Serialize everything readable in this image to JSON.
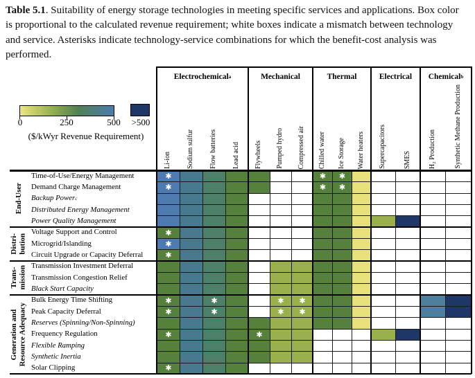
{
  "caption": {
    "bold": "Table 5.1",
    "text": ". Suitability of energy storage technologies in meeting specific services and applications. Box color is proportional to the calculated revenue requirement; white boxes indicate a mismatch between technology and service. Asterisks indicate technology-service combinations for which the benefit-cost analysis was performed."
  },
  "legend": {
    "ticks": [
      "0",
      "250",
      "500"
    ],
    "overflow_label": ">500",
    "caption": "($/kWyr Revenue Requirement)",
    "gradient": [
      "#ece67e",
      "#8aa94b",
      "#4f8155",
      "#4c7cae"
    ],
    "overflow_color": "#1e3766"
  },
  "palette": {
    "B": "#4d7ab0",
    "T": "#48798f",
    "F": "#4d8068",
    "G": "#55813c",
    "L": "#9ab04d",
    "Y": "#e8e17b",
    "S": "#4d7f9e",
    "N": "#1e3766",
    "W": "#ffffff"
  },
  "star_char": "✱",
  "columns": [
    {
      "label": "Electrochemical",
      "sup": "a",
      "techs": [
        "Li-ion",
        "Sodium sulfur",
        "Flow batteries",
        "Lead acid"
      ]
    },
    {
      "label": "Mechanical",
      "sup": "",
      "techs": [
        "Flywheels",
        "Pumped hydro",
        "Compressed air"
      ]
    },
    {
      "label": "Thermal",
      "sup": "",
      "techs": [
        "Chilled water",
        "Ice Storage",
        "Water heaters"
      ]
    },
    {
      "label": "Electrical",
      "sup": "",
      "techs": [
        "Supercapacitors",
        "SMES"
      ]
    },
    {
      "label": "Chemical",
      "sup": "b",
      "techs": [
        "H₂ Production",
        "Synthetic Methane Production"
      ]
    }
  ],
  "row_groups": [
    {
      "label_lines": [
        "End-User"
      ],
      "rows": [
        {
          "label": "Time-of-Use/Energy Management",
          "italic": false,
          "sup": ""
        },
        {
          "label": "Demand Charge Management",
          "italic": false,
          "sup": ""
        },
        {
          "label": "Backup Power",
          "italic": true,
          "sup": "c"
        },
        {
          "label": "Distributed Energy Management",
          "italic": true,
          "sup": ""
        },
        {
          "label": "Power Quality Management",
          "italic": true,
          "sup": ""
        }
      ]
    },
    {
      "label_lines": [
        "Distri-",
        "bution"
      ],
      "rows": [
        {
          "label": "Voltage Support and Control",
          "italic": false,
          "sup": ""
        },
        {
          "label": "Microgrid/Islanding",
          "italic": false,
          "sup": ""
        },
        {
          "label": "Circuit Upgrade or Capacity Deferral",
          "italic": false,
          "sup": ""
        }
      ]
    },
    {
      "label_lines": [
        "Trans-",
        "mission"
      ],
      "rows": [
        {
          "label": "Transmission Investment Deferral",
          "italic": false,
          "sup": ""
        },
        {
          "label": "Transmission Congestion Relief",
          "italic": false,
          "sup": ""
        },
        {
          "label": "Black Start Capacity",
          "italic": true,
          "sup": ""
        }
      ]
    },
    {
      "label_lines": [
        "Generation and",
        "Resource Adequacy"
      ],
      "rows": [
        {
          "label": "Bulk Energy Time Shifting",
          "italic": false,
          "sup": ""
        },
        {
          "label": "Peak Capacity Deferral",
          "italic": false,
          "sup": ""
        },
        {
          "label": "Reserves (Spinning/Non-Spinning)",
          "italic": true,
          "sup": ""
        },
        {
          "label": "Frequency Regulation",
          "italic": false,
          "sup": ""
        },
        {
          "label": "Flexible Ramping",
          "italic": true,
          "sup": ""
        },
        {
          "label": "Synthetic Inertia",
          "italic": true,
          "sup": ""
        },
        {
          "label": "Solar Clipping",
          "italic": false,
          "sup": ""
        }
      ]
    }
  ],
  "matrix": [
    [
      "B*",
      "T",
      "F",
      "G",
      "G",
      "W",
      "W",
      "G*",
      "G*",
      "Y",
      "W",
      "W",
      "W",
      "W"
    ],
    [
      "B*",
      "T",
      "F",
      "G",
      "G",
      "W",
      "W",
      "G*",
      "G*",
      "Y",
      "W",
      "W",
      "W",
      "W"
    ],
    [
      "B",
      "T",
      "F",
      "G",
      "W",
      "W",
      "W",
      "G",
      "G",
      "Y",
      "W",
      "W",
      "W",
      "W"
    ],
    [
      "B",
      "T",
      "F",
      "G",
      "W",
      "W",
      "W",
      "G",
      "G",
      "Y",
      "W",
      "W",
      "W",
      "W"
    ],
    [
      "B",
      "T",
      "F",
      "G",
      "W",
      "W",
      "W",
      "G",
      "G",
      "Y",
      "L",
      "N",
      "W",
      "W"
    ],
    [
      "G*",
      "T",
      "F",
      "G",
      "W",
      "W",
      "W",
      "G",
      "G",
      "Y",
      "W",
      "W",
      "W",
      "W"
    ],
    [
      "B*",
      "T",
      "F",
      "G",
      "W",
      "W",
      "W",
      "G",
      "G",
      "Y",
      "W",
      "W",
      "W",
      "W"
    ],
    [
      "G*",
      "T",
      "F",
      "G",
      "W",
      "W",
      "W",
      "G",
      "G",
      "Y",
      "W",
      "W",
      "W",
      "W"
    ],
    [
      "G",
      "T",
      "F",
      "G",
      "W",
      "L",
      "L",
      "G",
      "G",
      "Y",
      "W",
      "W",
      "W",
      "W"
    ],
    [
      "G",
      "T",
      "F",
      "G",
      "W",
      "L",
      "L",
      "G",
      "G",
      "Y",
      "W",
      "W",
      "W",
      "W"
    ],
    [
      "G",
      "T",
      "F",
      "G",
      "W",
      "L",
      "L",
      "G",
      "G",
      "Y",
      "W",
      "W",
      "W",
      "W"
    ],
    [
      "G*",
      "T",
      "F*",
      "G",
      "W",
      "L*",
      "L*",
      "G",
      "G",
      "Y",
      "W",
      "W",
      "S",
      "N"
    ],
    [
      "G*",
      "T",
      "F*",
      "G",
      "W",
      "L*",
      "L*",
      "G",
      "G",
      "Y",
      "W",
      "W",
      "S",
      "N"
    ],
    [
      "G",
      "T",
      "F",
      "G",
      "G",
      "L",
      "L",
      "G",
      "G",
      "Y",
      "W",
      "W",
      "W",
      "W"
    ],
    [
      "G*",
      "T",
      "F",
      "G",
      "G*",
      "L",
      "L",
      "W",
      "W",
      "W",
      "L",
      "N",
      "W",
      "W"
    ],
    [
      "G",
      "T",
      "F",
      "G",
      "G",
      "L",
      "L",
      "W",
      "W",
      "W",
      "W",
      "W",
      "W",
      "W"
    ],
    [
      "G",
      "T",
      "F",
      "G",
      "G",
      "L",
      "L",
      "W",
      "W",
      "W",
      "W",
      "W",
      "W",
      "W"
    ],
    [
      "G*",
      "T",
      "F",
      "G",
      "W",
      "W",
      "W",
      "W",
      "W",
      "W",
      "W",
      "W",
      "W",
      "W"
    ]
  ],
  "chart_data": {
    "type": "heatmap",
    "title": "Suitability of energy storage technologies in meeting specific services and applications",
    "colorbar": {
      "label": "($/kWyr Revenue Requirement)",
      "range": [
        0,
        500
      ],
      "ticks": [
        0,
        250,
        500
      ],
      "overflow": ">500"
    },
    "color_key_approx_dollars_per_kWyr": {
      "B": 480,
      "T": 420,
      "F": 350,
      "G": 260,
      "L": 140,
      "Y": 40,
      "S": 430,
      "N": ">500",
      "W": "mismatch"
    },
    "cell_note": "matrix key above maps each service row x technology column; '*' = benefit-cost analysis performed"
  }
}
